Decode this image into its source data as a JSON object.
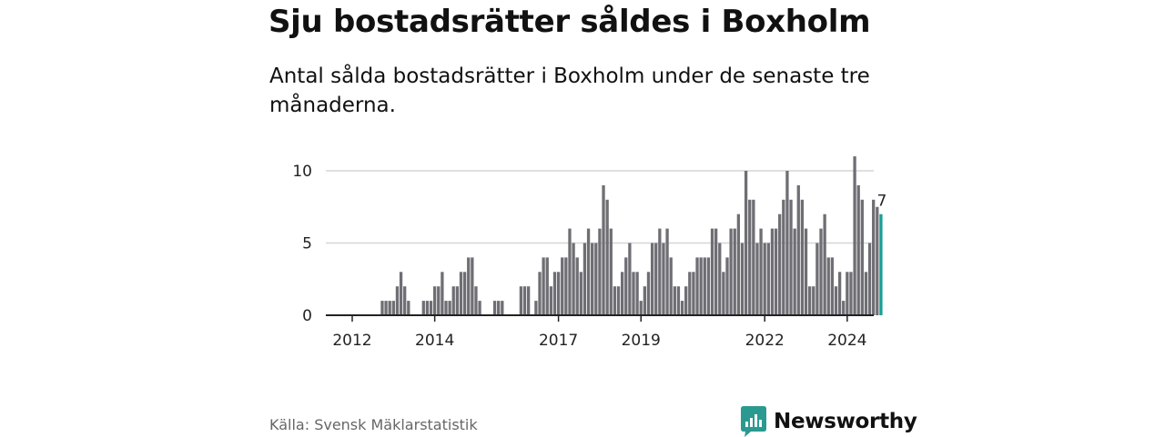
{
  "header": {
    "title": "Sju bostadsrätter såldes i Boxholm",
    "subtitle": "Antal sålda bostadsrätter i Boxholm under de senaste tre månaderna."
  },
  "footer": {
    "source": "Källa: Svensk Mäklarstatistik",
    "brand": "Newsworthy"
  },
  "colors": {
    "bar": "#6e6e74",
    "highlight": "#1a9e96",
    "grid": "#d6d6d6",
    "axis": "#222222",
    "brand": "#2a9a91"
  },
  "chart_data": {
    "type": "bar",
    "title": "Antal sålda bostadsrätter i Boxholm",
    "xlabel": "",
    "ylabel": "",
    "ylim": [
      0,
      12
    ],
    "yticks": [
      0,
      5,
      10
    ],
    "xticks": [
      {
        "label": "2012",
        "index": 0
      },
      {
        "label": "2014",
        "index": 22
      },
      {
        "label": "2017",
        "index": 55
      },
      {
        "label": "2019",
        "index": 77
      },
      {
        "label": "2022",
        "index": 110
      },
      {
        "label": "2024",
        "index": 132
      }
    ],
    "highlight_label": "7",
    "values": [
      0,
      0,
      0,
      0,
      0,
      0,
      0,
      0,
      1,
      1,
      1,
      1,
      2,
      3,
      2,
      1,
      0,
      0,
      0,
      1,
      1,
      1,
      2,
      2,
      3,
      1,
      1,
      2,
      2,
      3,
      3,
      4,
      4,
      2,
      1,
      0,
      0,
      0,
      1,
      1,
      1,
      0,
      0,
      0,
      0,
      2,
      2,
      2,
      0,
      1,
      3,
      4,
      4,
      2,
      3,
      3,
      4,
      4,
      6,
      5,
      4,
      3,
      5,
      6,
      5,
      5,
      6,
      9,
      8,
      6,
      2,
      2,
      3,
      4,
      5,
      3,
      3,
      1,
      2,
      3,
      5,
      5,
      6,
      5,
      6,
      4,
      2,
      2,
      1,
      2,
      3,
      3,
      4,
      4,
      4,
      4,
      6,
      6,
      5,
      3,
      4,
      6,
      6,
      7,
      5,
      10,
      8,
      8,
      5,
      6,
      5,
      5,
      6,
      6,
      7,
      8,
      10,
      8,
      6,
      9,
      8,
      6,
      2,
      2,
      5,
      6,
      7,
      4,
      4,
      2,
      3,
      1,
      3,
      3,
      11,
      9,
      8,
      3,
      5,
      8,
      7.5,
      7
    ]
  }
}
